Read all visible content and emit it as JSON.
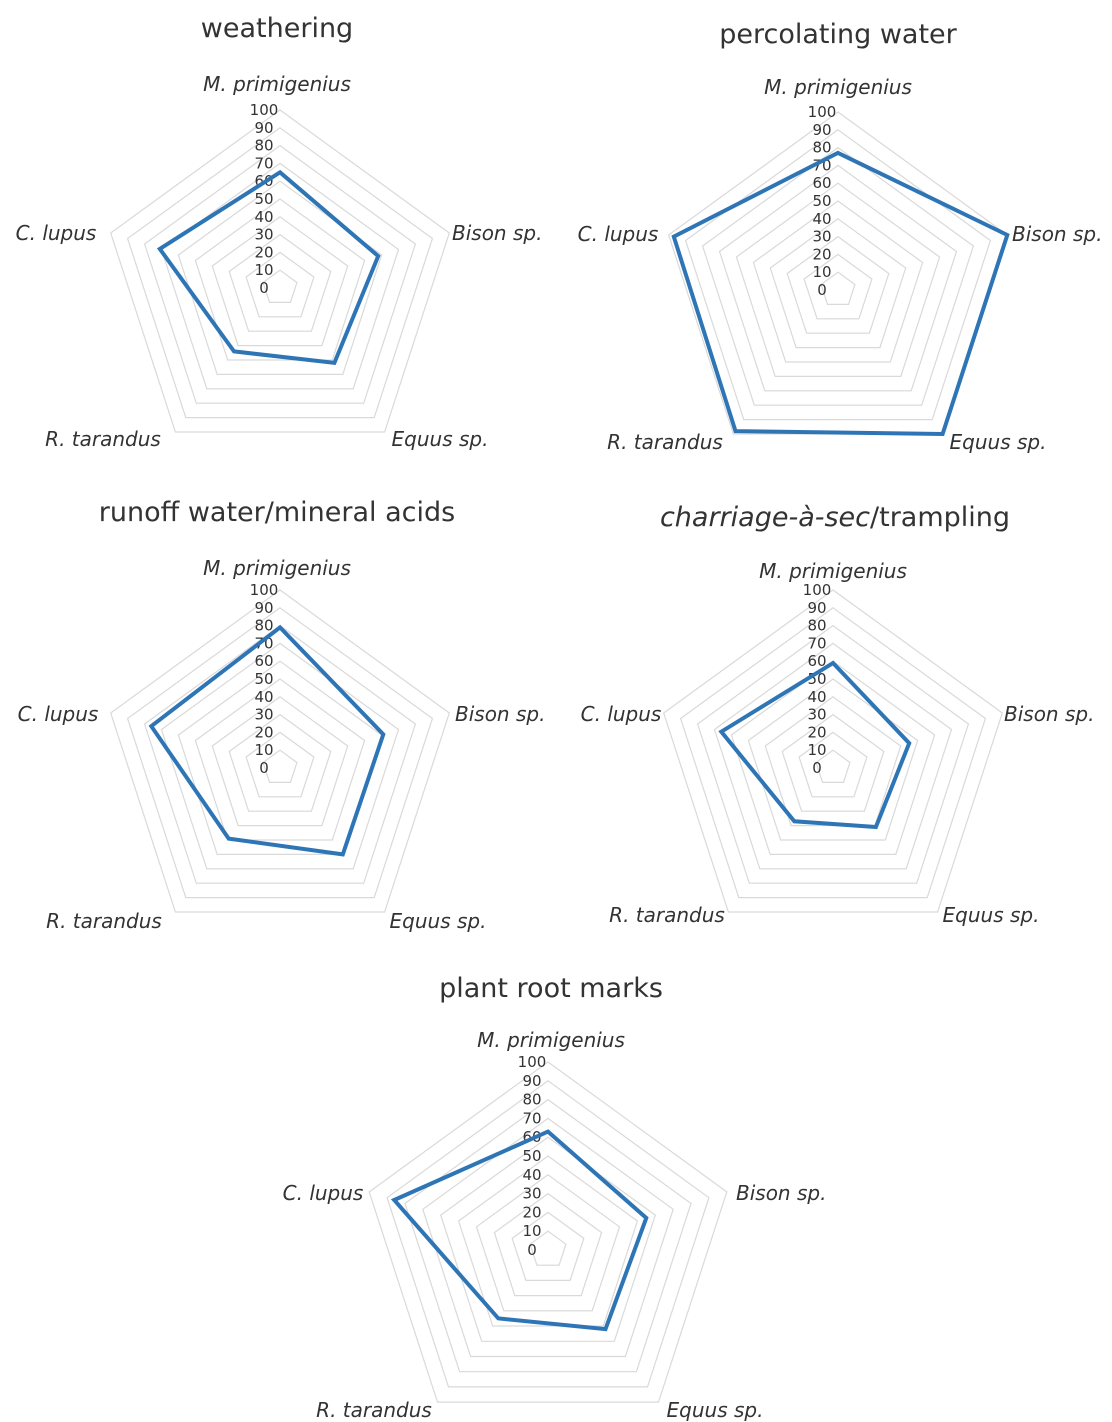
{
  "chart_data": [
    {
      "type": "radar",
      "title": "weathering",
      "title_parts": [
        {
          "text": "weathering",
          "italic": false
        }
      ],
      "categories": [
        "M. primigenius",
        "Bison sp.",
        "Equus sp.",
        "R. tarandus",
        "C. lupus"
      ],
      "ticks": [
        "0",
        "10",
        "20",
        "30",
        "40",
        "50",
        "60",
        "70",
        "80",
        "90",
        "100"
      ],
      "range": [
        0,
        100
      ],
      "grid": true,
      "series": [
        {
          "color": "#2e75b6",
          "values": [
            65,
            58,
            52,
            44,
            71
          ]
        }
      ]
    },
    {
      "type": "radar",
      "title": "percolating water",
      "title_parts": [
        {
          "text": "percolating water",
          "italic": false
        }
      ],
      "categories": [
        "M. primigenius",
        "Bison sp.",
        "Equus sp.",
        "R. tarandus",
        "C. lupus"
      ],
      "ticks": [
        "0",
        "10",
        "20",
        "30",
        "40",
        "50",
        "60",
        "70",
        "80",
        "90",
        "100"
      ],
      "range": [
        0,
        100
      ],
      "grid": true,
      "series": [
        {
          "color": "#2e75b6",
          "values": [
            77,
            100,
            100,
            98,
            97
          ]
        }
      ]
    },
    {
      "type": "radar",
      "title": "runoff water/mineral acids",
      "title_parts": [
        {
          "text": "runoff water/mineral acids",
          "italic": false
        }
      ],
      "categories": [
        "M. primigenius",
        "Bison sp.",
        "Equus sp.",
        "R. tarandus",
        "C. lupus"
      ],
      "ticks": [
        "0",
        "10",
        "20",
        "30",
        "40",
        "50",
        "60",
        "70",
        "80",
        "90",
        "100"
      ],
      "range": [
        0,
        100
      ],
      "grid": true,
      "series": [
        {
          "color": "#2e75b6",
          "values": [
            79,
            61,
            60,
            49,
            76
          ]
        }
      ]
    },
    {
      "type": "radar",
      "title": "charriage-à-sec/trampling",
      "title_parts": [
        {
          "text": "charriage-à-sec",
          "italic": true
        },
        {
          "text": "/trampling",
          "italic": false
        }
      ],
      "categories": [
        "M. primigenius",
        "Bison sp.",
        "Equus sp.",
        "R. tarandus",
        "C. lupus"
      ],
      "ticks": [
        "0",
        "10",
        "20",
        "30",
        "40",
        "50",
        "60",
        "70",
        "80",
        "90",
        "100"
      ],
      "range": [
        0,
        100
      ],
      "grid": true,
      "series": [
        {
          "color": "#2e75b6",
          "values": [
            59,
            45,
            41,
            37,
            66
          ]
        }
      ]
    },
    {
      "type": "radar",
      "title": "plant root marks",
      "title_parts": [
        {
          "text": "plant root marks",
          "italic": false
        }
      ],
      "categories": [
        "M. primigenius",
        "Bison sp.",
        "Equus sp.",
        "R. tarandus",
        "C. lupus"
      ],
      "ticks": [
        "0",
        "10",
        "20",
        "30",
        "40",
        "50",
        "60",
        "70",
        "80",
        "90",
        "100"
      ],
      "range": [
        0,
        100
      ],
      "grid": true,
      "series": [
        {
          "color": "#2e75b6",
          "values": [
            63,
            55,
            52,
            45,
            86
          ]
        }
      ]
    }
  ]
}
